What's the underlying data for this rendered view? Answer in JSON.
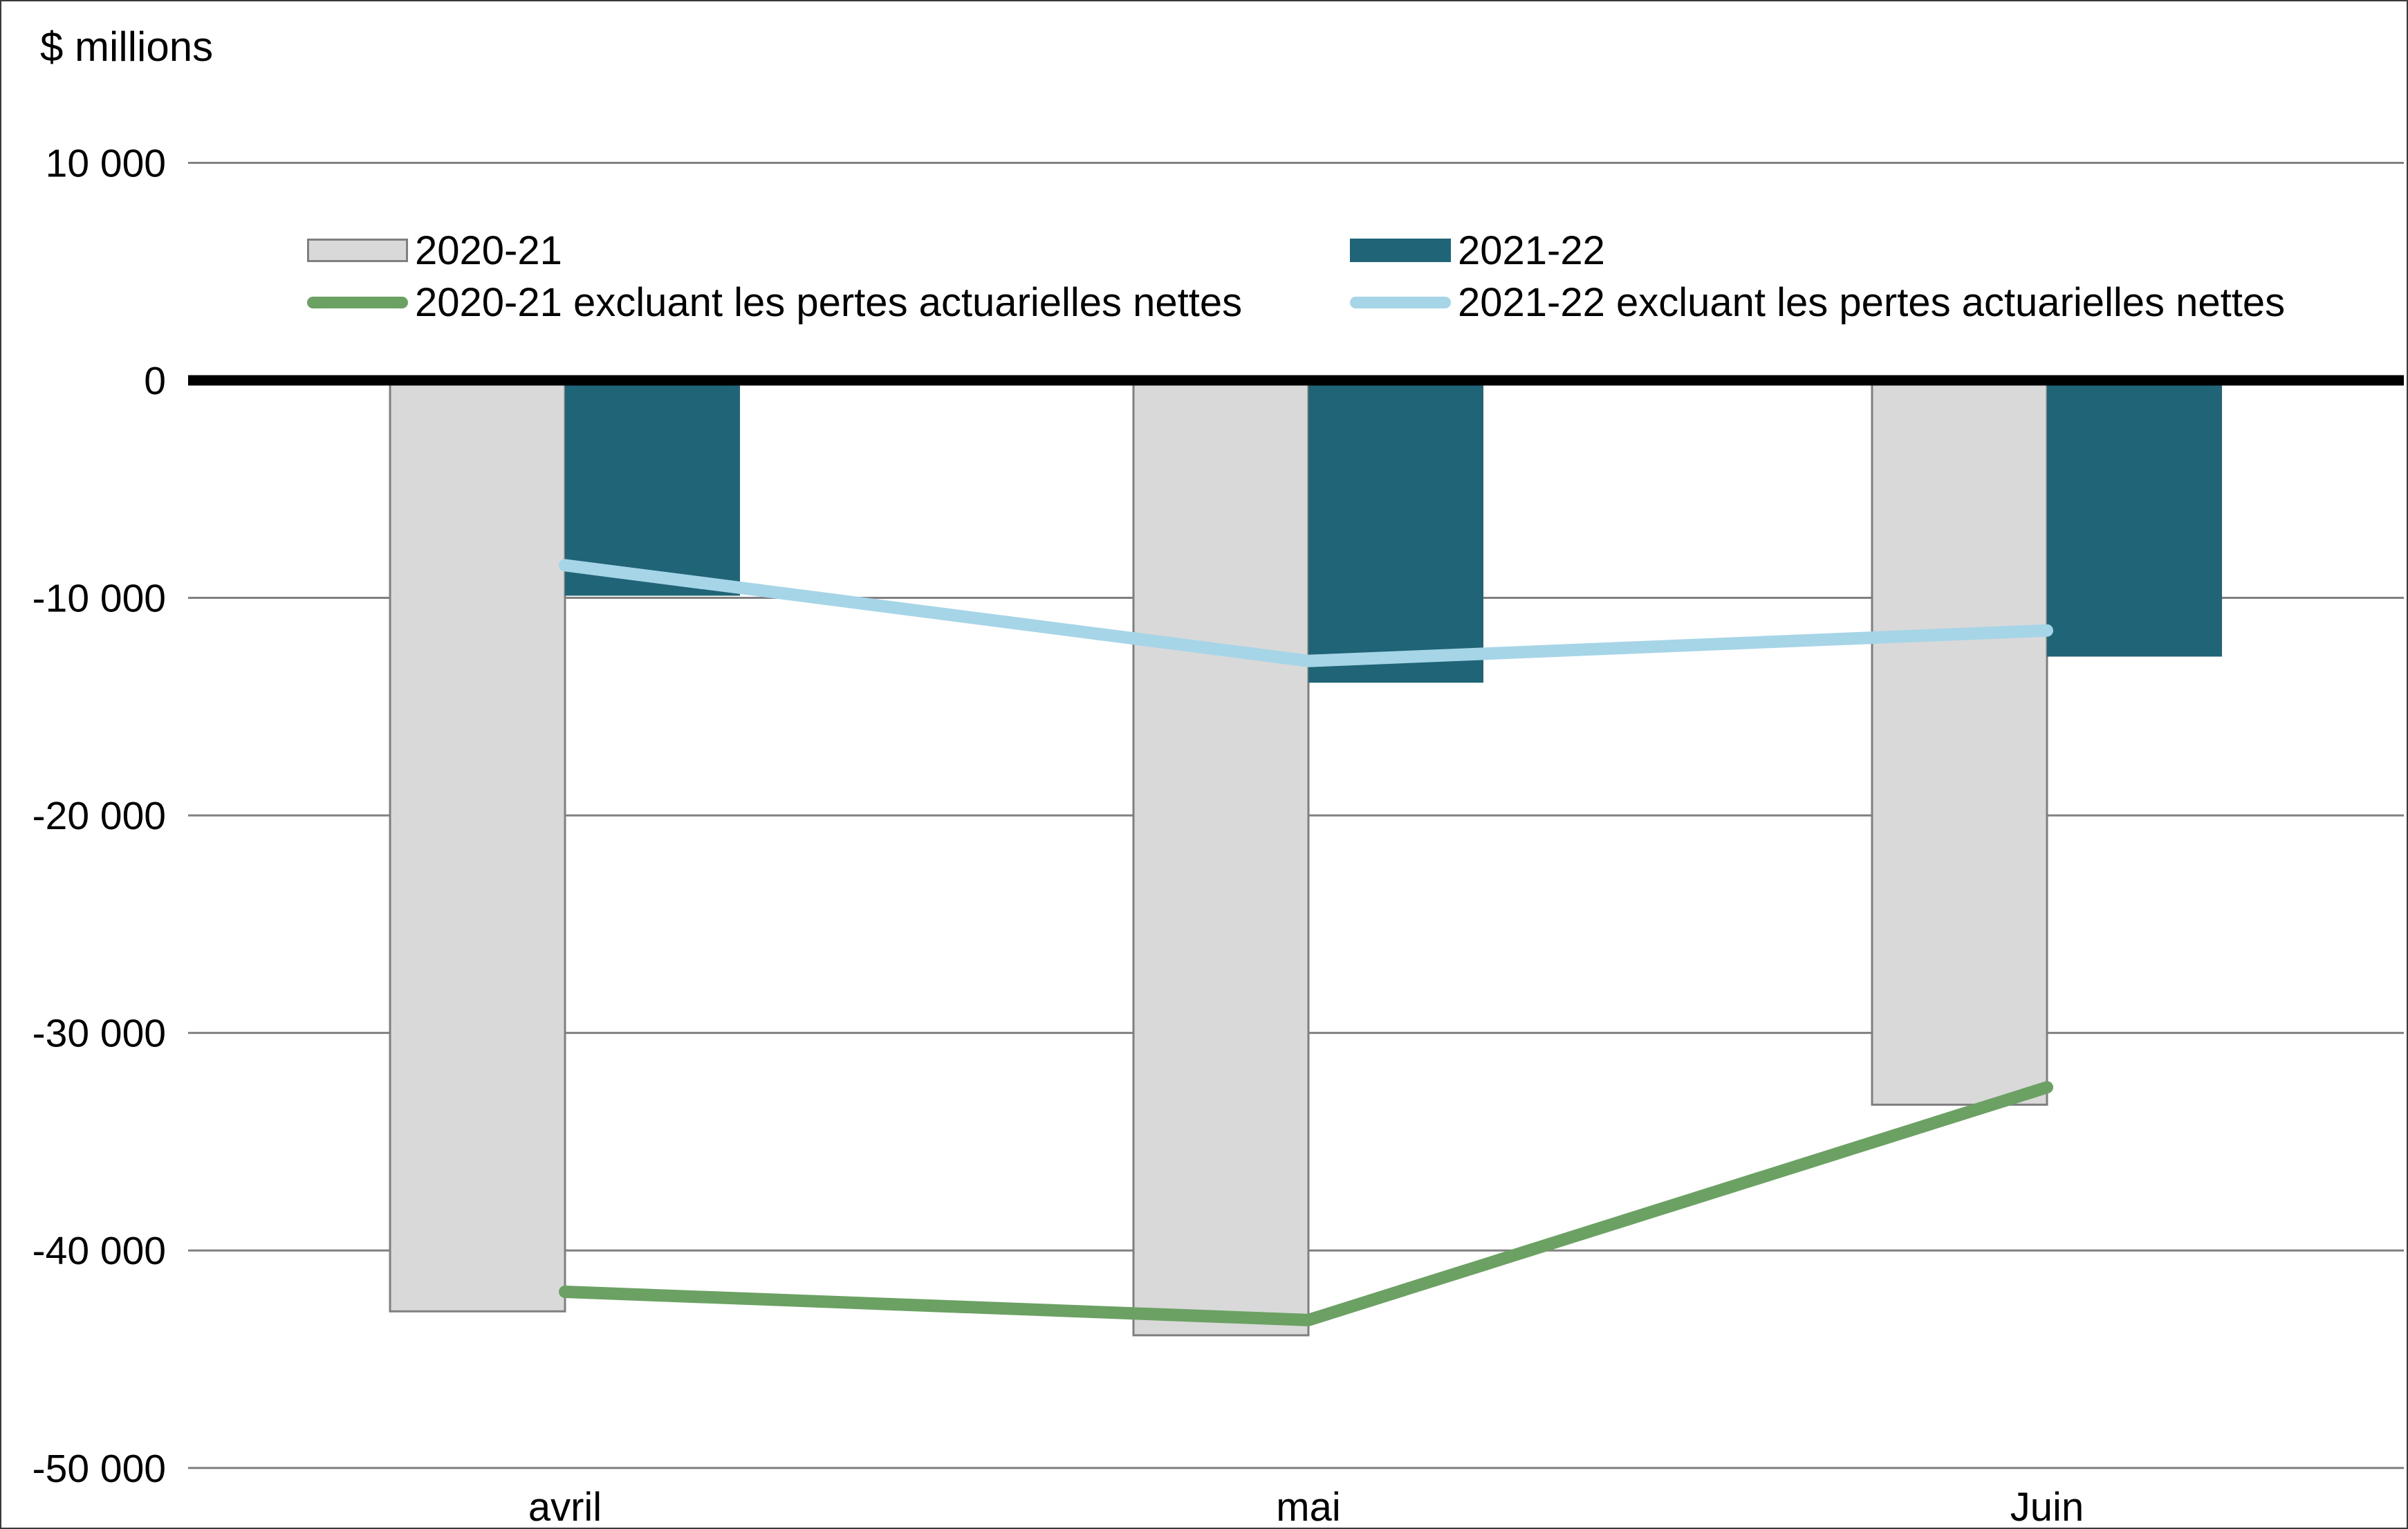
{
  "chart_data": {
    "type": "bar",
    "subtype": "grouped-bar-with-line-overlay",
    "title": "$ millions",
    "categories": [
      "avril",
      "mai",
      "Juin"
    ],
    "bar_series": [
      {
        "name": "2020-21",
        "color": "#d9d9d9",
        "border_color": "#7f7f7f",
        "values": [
          -42800,
          -43900,
          -33300
        ]
      },
      {
        "name": "2021-22",
        "color": "#1f6577",
        "values": [
          -9900,
          -13900,
          -12700
        ]
      }
    ],
    "line_series": [
      {
        "name": "2020-21 excluant les pertes actuarielles nettes",
        "color": "#6ba263",
        "values": [
          -41900,
          -43200,
          -32500
        ]
      },
      {
        "name": "2021-22 excluant les pertes actuarielles nettes",
        "color": "#a6d5e8",
        "values": [
          -8500,
          -12900,
          -11500
        ]
      }
    ],
    "y_axis": {
      "unit_label": "$ millions",
      "ylim": [
        -50000,
        10000
      ],
      "ticks": [
        {
          "value": 10000,
          "label": "10 000"
        },
        {
          "value": 0,
          "label": "0"
        },
        {
          "value": -10000,
          "label": "-10 000"
        },
        {
          "value": -20000,
          "label": "-20 000"
        },
        {
          "value": -30000,
          "label": "-30 000"
        },
        {
          "value": -40000,
          "label": "-40 000"
        },
        {
          "value": -50000,
          "label": "-50 000"
        }
      ]
    },
    "x_axis": {
      "labels": [
        "avril",
        "mai",
        "Juin"
      ]
    },
    "grid": "horizontal",
    "legend_position": "top-inside",
    "axis_color": "#000000",
    "gridline_color": "#808080"
  }
}
